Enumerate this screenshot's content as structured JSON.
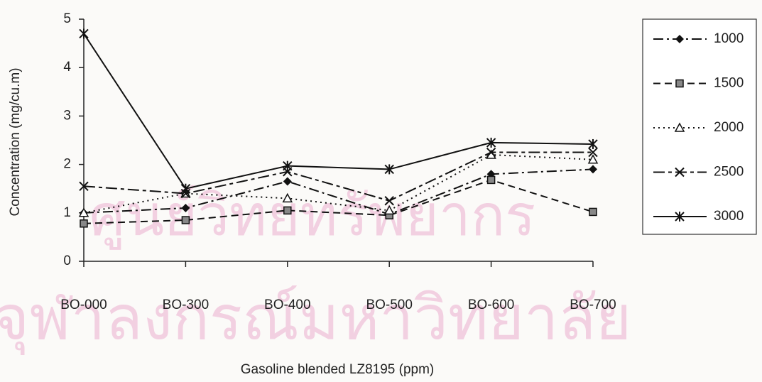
{
  "chart_data": {
    "type": "line",
    "xlabel": "Gasoline blended LZ8195 (ppm)",
    "ylabel": "Concentration (mg/cu.m)",
    "categories": [
      "BO-000",
      "BO-300",
      "BO-400",
      "BO-500",
      "BO-600",
      "BO-700"
    ],
    "ylim": [
      0,
      5
    ],
    "yticks": [
      0,
      1,
      2,
      3,
      4,
      5
    ],
    "legend": "right",
    "annotations": [
      "ศูนย์วิทยทรัพยากร",
      "จุฬาลงกรณ์มหาวิทยาลัย"
    ],
    "series": [
      {
        "name": "1000",
        "color": "#111111",
        "dash": "14 5 3 5",
        "marker": "diamond",
        "values": [
          1.0,
          1.1,
          1.65,
          0.97,
          1.8,
          1.9
        ]
      },
      {
        "name": "1500",
        "color": "#111111",
        "dash": "10 6",
        "marker": "square",
        "values": [
          0.78,
          0.85,
          1.05,
          0.95,
          1.68,
          1.02
        ]
      },
      {
        "name": "2000",
        "color": "#111111",
        "dash": "2 5",
        "marker": "triangle",
        "values": [
          1.0,
          1.4,
          1.3,
          1.05,
          2.2,
          2.1
        ]
      },
      {
        "name": "2500",
        "color": "#111111",
        "dash": "16 5 5 5",
        "marker": "x",
        "values": [
          1.55,
          1.4,
          1.85,
          1.25,
          2.25,
          2.25
        ]
      },
      {
        "name": "3000",
        "color": "#111111",
        "dash": "",
        "marker": "star",
        "values": [
          4.7,
          1.5,
          1.97,
          1.9,
          2.45,
          2.42
        ]
      }
    ]
  }
}
